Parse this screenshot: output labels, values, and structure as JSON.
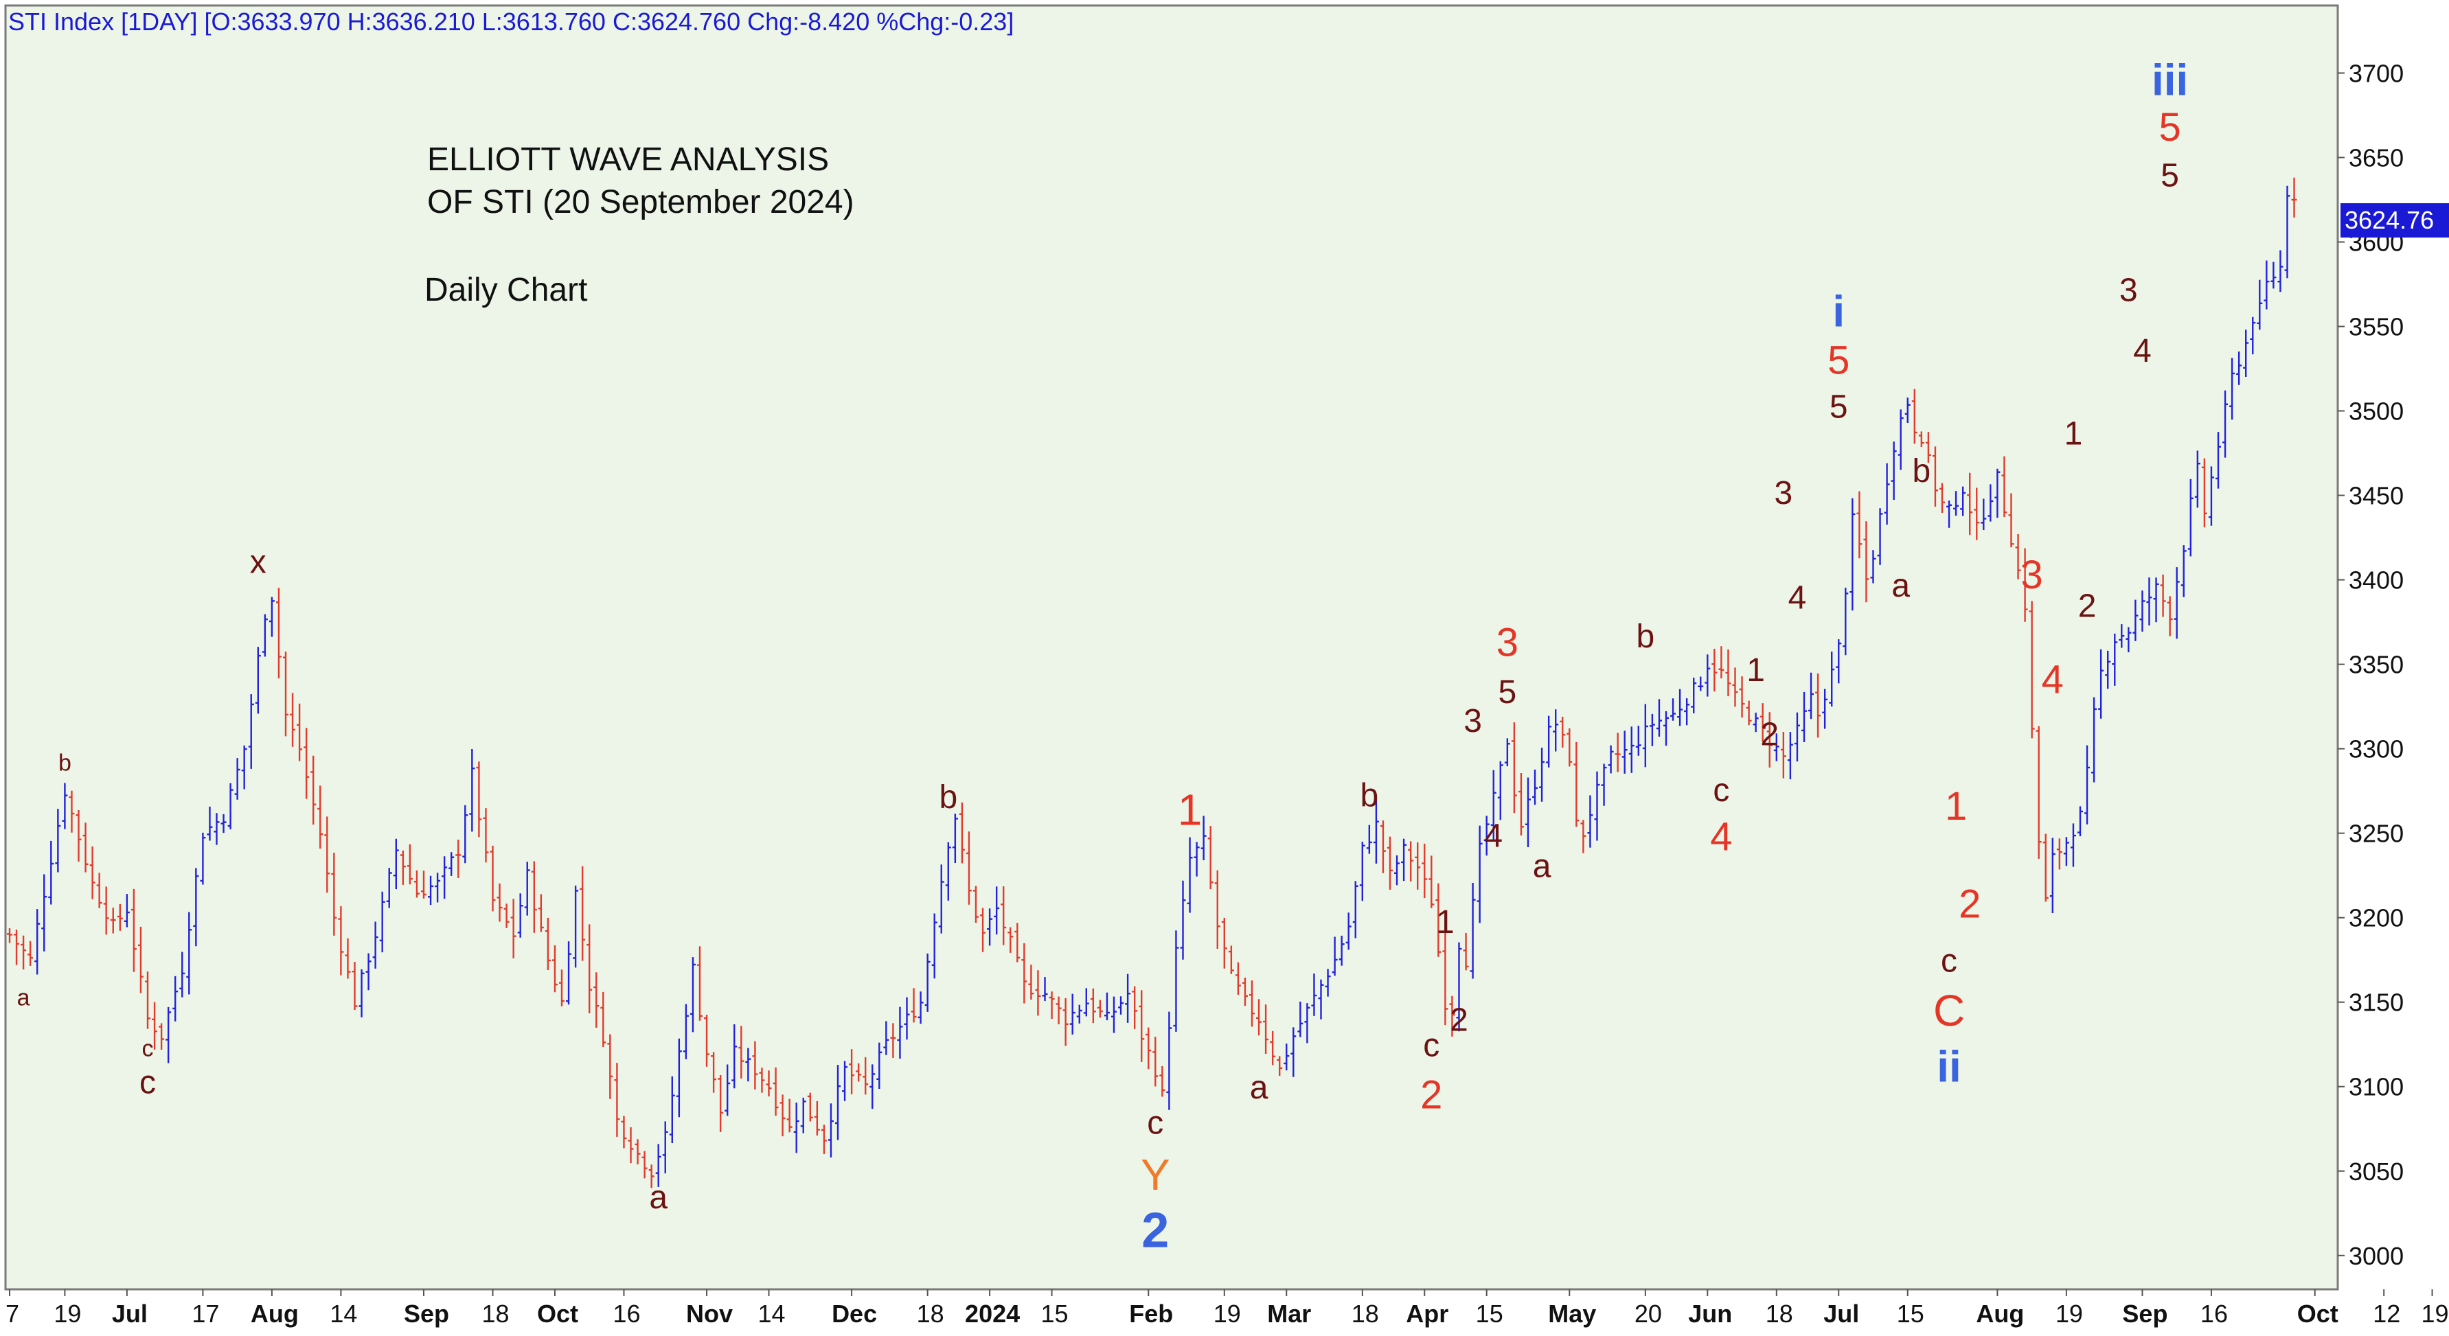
{
  "header": "STI Index [1DAY] [O:3633.970 H:3636.210 L:3613.760 C:3624.760 Chg:-8.420 %Chg:-0.23]",
  "title_lines": [
    "ELLIOTT WAVE ANALYSIS",
    "OF STI (20 September 2024)"
  ],
  "subtitle": "Daily Chart",
  "last_price_label": "3624.76",
  "colors": {
    "plot_bg": "#ecf5e8",
    "up_bar": "#2222dd",
    "down_bar": "#e23b2e",
    "wave_dark": "#6b1212",
    "wave_red": "#e53526",
    "wave_blue": "#3a63e0",
    "wave_orange": "#ef7b2a",
    "header_text": "#1a1ad6",
    "last_price_bg": "#1a1ad6"
  },
  "chart_data": {
    "type": "ohlc",
    "y_axis": {
      "min": 2980,
      "max": 3740,
      "ticks": [
        3000,
        3050,
        3100,
        3150,
        3200,
        3250,
        3300,
        3350,
        3400,
        3450,
        3500,
        3550,
        3600,
        3650,
        3700
      ],
      "position": "right"
    },
    "x_axis": {
      "labels": [
        {
          "text": "7",
          "bar": 0,
          "bold": false
        },
        {
          "text": "19",
          "bar": 8,
          "bold": false
        },
        {
          "text": "Jul",
          "bar": 17,
          "bold": true
        },
        {
          "text": "17",
          "bar": 28,
          "bold": false
        },
        {
          "text": "Aug",
          "bar": 38,
          "bold": true
        },
        {
          "text": "14",
          "bar": 48,
          "bold": false
        },
        {
          "text": "Sep",
          "bar": 60,
          "bold": true
        },
        {
          "text": "18",
          "bar": 70,
          "bold": false
        },
        {
          "text": "Oct",
          "bar": 79,
          "bold": true
        },
        {
          "text": "16",
          "bar": 89,
          "bold": false
        },
        {
          "text": "Nov",
          "bar": 101,
          "bold": true
        },
        {
          "text": "14",
          "bar": 110,
          "bold": false
        },
        {
          "text": "Dec",
          "bar": 122,
          "bold": true
        },
        {
          "text": "18",
          "bar": 133,
          "bold": false
        },
        {
          "text": "2024",
          "bar": 142,
          "bold": true
        },
        {
          "text": "15",
          "bar": 151,
          "bold": false
        },
        {
          "text": "Feb",
          "bar": 165,
          "bold": true
        },
        {
          "text": "19",
          "bar": 176,
          "bold": false
        },
        {
          "text": "Mar",
          "bar": 185,
          "bold": true
        },
        {
          "text": "18",
          "bar": 196,
          "bold": false
        },
        {
          "text": "Apr",
          "bar": 205,
          "bold": true
        },
        {
          "text": "15",
          "bar": 214,
          "bold": false
        },
        {
          "text": "May",
          "bar": 226,
          "bold": true
        },
        {
          "text": "20",
          "bar": 237,
          "bold": false
        },
        {
          "text": "Jun",
          "bar": 246,
          "bold": true
        },
        {
          "text": "18",
          "bar": 256,
          "bold": false
        },
        {
          "text": "Jul",
          "bar": 265,
          "bold": true
        },
        {
          "text": "15",
          "bar": 275,
          "bold": false
        },
        {
          "text": "Aug",
          "bar": 288,
          "bold": true
        },
        {
          "text": "19",
          "bar": 298,
          "bold": false
        },
        {
          "text": "Sep",
          "bar": 309,
          "bold": true
        },
        {
          "text": "16",
          "bar": 319,
          "bold": false
        },
        {
          "text": "Oct",
          "bar": 334,
          "bold": true
        },
        {
          "text": "12",
          "bar": 344,
          "bold": false
        },
        {
          "text": "19",
          "bar": 351,
          "bold": false
        }
      ]
    },
    "anchors": [
      [
        0,
        3190
      ],
      [
        3,
        3175
      ],
      [
        8,
        3275
      ],
      [
        12,
        3220
      ],
      [
        15,
        3195
      ],
      [
        17,
        3205
      ],
      [
        20,
        3140
      ],
      [
        22,
        3130
      ],
      [
        25,
        3170
      ],
      [
        28,
        3250
      ],
      [
        31,
        3260
      ],
      [
        34,
        3300
      ],
      [
        37,
        3380
      ],
      [
        38,
        3390
      ],
      [
        40,
        3320
      ],
      [
        42,
        3300
      ],
      [
        45,
        3250
      ],
      [
        47,
        3200
      ],
      [
        50,
        3150
      ],
      [
        53,
        3190
      ],
      [
        56,
        3240
      ],
      [
        59,
        3215
      ],
      [
        62,
        3220
      ],
      [
        65,
        3240
      ],
      [
        67,
        3285
      ],
      [
        70,
        3210
      ],
      [
        73,
        3190
      ],
      [
        75,
        3225
      ],
      [
        78,
        3175
      ],
      [
        80,
        3150
      ],
      [
        82,
        3215
      ],
      [
        84,
        3160
      ],
      [
        86,
        3130
      ],
      [
        88,
        3080
      ],
      [
        91,
        3060
      ],
      [
        93,
        3050
      ],
      [
        95,
        3070
      ],
      [
        97,
        3120
      ],
      [
        99,
        3170
      ],
      [
        101,
        3120
      ],
      [
        103,
        3085
      ],
      [
        105,
        3120
      ],
      [
        108,
        3110
      ],
      [
        110,
        3100
      ],
      [
        113,
        3075
      ],
      [
        115,
        3090
      ],
      [
        118,
        3070
      ],
      [
        121,
        3110
      ],
      [
        124,
        3100
      ],
      [
        127,
        3125
      ],
      [
        130,
        3140
      ],
      [
        132,
        3150
      ],
      [
        134,
        3200
      ],
      [
        136,
        3245
      ],
      [
        137,
        3260
      ],
      [
        139,
        3215
      ],
      [
        141,
        3190
      ],
      [
        143,
        3205
      ],
      [
        145,
        3185
      ],
      [
        147,
        3160
      ],
      [
        150,
        3155
      ],
      [
        153,
        3140
      ],
      [
        156,
        3150
      ],
      [
        159,
        3140
      ],
      [
        162,
        3155
      ],
      [
        164,
        3130
      ],
      [
        166,
        3110
      ],
      [
        167,
        3095
      ],
      [
        169,
        3180
      ],
      [
        171,
        3235
      ],
      [
        173,
        3245
      ],
      [
        175,
        3195
      ],
      [
        177,
        3165
      ],
      [
        179,
        3150
      ],
      [
        181,
        3140
      ],
      [
        183,
        3120
      ],
      [
        184,
        3110
      ],
      [
        186,
        3130
      ],
      [
        188,
        3145
      ],
      [
        190,
        3160
      ],
      [
        192,
        3175
      ],
      [
        194,
        3195
      ],
      [
        196,
        3240
      ],
      [
        198,
        3255
      ],
      [
        200,
        3225
      ],
      [
        202,
        3240
      ],
      [
        204,
        3230
      ],
      [
        206,
        3210
      ],
      [
        207,
        3180
      ],
      [
        208,
        3150
      ],
      [
        209,
        3145
      ],
      [
        210,
        3185
      ],
      [
        211,
        3175
      ],
      [
        213,
        3240
      ],
      [
        215,
        3270
      ],
      [
        217,
        3305
      ],
      [
        218,
        3275
      ],
      [
        219,
        3255
      ],
      [
        221,
        3280
      ],
      [
        223,
        3310
      ],
      [
        224,
        3315
      ],
      [
        226,
        3295
      ],
      [
        227,
        3255
      ],
      [
        228,
        3250
      ],
      [
        230,
        3275
      ],
      [
        232,
        3295
      ],
      [
        235,
        3300
      ],
      [
        238,
        3315
      ],
      [
        241,
        3320
      ],
      [
        243,
        3330
      ],
      [
        245,
        3340
      ],
      [
        246,
        3350
      ],
      [
        248,
        3345
      ],
      [
        250,
        3330
      ],
      [
        252,
        3320
      ],
      [
        254,
        3310
      ],
      [
        256,
        3300
      ],
      [
        257,
        3295
      ],
      [
        259,
        3310
      ],
      [
        261,
        3330
      ],
      [
        262,
        3320
      ],
      [
        264,
        3345
      ],
      [
        265,
        3360
      ],
      [
        266,
        3395
      ],
      [
        267,
        3435
      ],
      [
        268,
        3420
      ],
      [
        269,
        3400
      ],
      [
        270,
        3415
      ],
      [
        272,
        3460
      ],
      [
        273,
        3480
      ],
      [
        274,
        3495
      ],
      [
        275,
        3505
      ],
      [
        276,
        3490
      ],
      [
        277,
        3485
      ],
      [
        278,
        3470
      ],
      [
        279,
        3455
      ],
      [
        280,
        3445
      ],
      [
        282,
        3440
      ],
      [
        283,
        3455
      ],
      [
        285,
        3430
      ],
      [
        286,
        3440
      ],
      [
        288,
        3460
      ],
      [
        290,
        3425
      ],
      [
        292,
        3385
      ],
      [
        293,
        3310
      ],
      [
        294,
        3245
      ],
      [
        295,
        3210
      ],
      [
        296,
        3235
      ],
      [
        298,
        3245
      ],
      [
        300,
        3260
      ],
      [
        301,
        3285
      ],
      [
        302,
        3320
      ],
      [
        303,
        3345
      ],
      [
        305,
        3365
      ],
      [
        307,
        3370
      ],
      [
        309,
        3385
      ],
      [
        311,
        3395
      ],
      [
        313,
        3380
      ],
      [
        315,
        3420
      ],
      [
        316,
        3445
      ],
      [
        317,
        3465
      ],
      [
        318,
        3440
      ],
      [
        319,
        3460
      ],
      [
        320,
        3480
      ],
      [
        321,
        3500
      ],
      [
        322,
        3520
      ],
      [
        324,
        3540
      ],
      [
        325,
        3555
      ],
      [
        326,
        3560
      ],
      [
        327,
        3575
      ],
      [
        328,
        3580
      ],
      [
        329,
        3585
      ],
      [
        330,
        3630
      ],
      [
        331,
        3625
      ]
    ],
    "wave_labels": [
      {
        "text": "a",
        "bar": 2,
        "price": 3148,
        "size": 34,
        "color": "wave_dark"
      },
      {
        "text": "b",
        "bar": 8,
        "price": 3287,
        "size": 34,
        "color": "wave_dark"
      },
      {
        "text": "c",
        "bar": 20,
        "price": 3118,
        "size": 34,
        "color": "wave_dark"
      },
      {
        "text": "c",
        "bar": 20,
        "price": 3096,
        "size": 48,
        "color": "wave_dark"
      },
      {
        "text": "x",
        "bar": 36,
        "price": 3404,
        "size": 48,
        "color": "wave_dark"
      },
      {
        "text": "a",
        "bar": 94,
        "price": 3028,
        "size": 48,
        "color": "wave_dark"
      },
      {
        "text": "b",
        "bar": 136,
        "price": 3265,
        "size": 48,
        "color": "wave_dark"
      },
      {
        "text": "c",
        "bar": 166,
        "price": 3072,
        "size": 48,
        "color": "wave_dark"
      },
      {
        "text": "Y",
        "bar": 166,
        "price": 3039,
        "size": 64,
        "color": "wave_orange"
      },
      {
        "text": "2",
        "bar": 166,
        "price": 3005,
        "size": 72,
        "color": "wave_blue"
      },
      {
        "text": "1",
        "bar": 171,
        "price": 3255,
        "size": 64,
        "color": "wave_red"
      },
      {
        "text": "a",
        "bar": 181,
        "price": 3093,
        "size": 48,
        "color": "wave_dark"
      },
      {
        "text": "b",
        "bar": 197,
        "price": 3266,
        "size": 48,
        "color": "wave_dark"
      },
      {
        "text": "c",
        "bar": 206,
        "price": 3118,
        "size": 48,
        "color": "wave_dark"
      },
      {
        "text": "2",
        "bar": 206,
        "price": 3087,
        "size": 58,
        "color": "wave_red"
      },
      {
        "text": "1",
        "bar": 208,
        "price": 3191,
        "size": 48,
        "color": "wave_dark"
      },
      {
        "text": "2",
        "bar": 210,
        "price": 3133,
        "size": 48,
        "color": "wave_dark"
      },
      {
        "text": "3",
        "bar": 212,
        "price": 3310,
        "size": 48,
        "color": "wave_dark"
      },
      {
        "text": "4",
        "bar": 215,
        "price": 3242,
        "size": 48,
        "color": "wave_dark"
      },
      {
        "text": "3",
        "bar": 217,
        "price": 3355,
        "size": 58,
        "color": "wave_red"
      },
      {
        "text": "5",
        "bar": 217,
        "price": 3327,
        "size": 48,
        "color": "wave_dark"
      },
      {
        "text": "a",
        "bar": 222,
        "price": 3224,
        "size": 48,
        "color": "wave_dark"
      },
      {
        "text": "b",
        "bar": 237,
        "price": 3360,
        "size": 48,
        "color": "wave_dark"
      },
      {
        "text": "c",
        "bar": 248,
        "price": 3269,
        "size": 48,
        "color": "wave_dark"
      },
      {
        "text": "4",
        "bar": 248,
        "price": 3240,
        "size": 58,
        "color": "wave_red"
      },
      {
        "text": "1",
        "bar": 253,
        "price": 3340,
        "size": 48,
        "color": "wave_dark"
      },
      {
        "text": "2",
        "bar": 255,
        "price": 3302,
        "size": 48,
        "color": "wave_dark"
      },
      {
        "text": "3",
        "bar": 257,
        "price": 3445,
        "size": 48,
        "color": "wave_dark"
      },
      {
        "text": "4",
        "bar": 259,
        "price": 3383,
        "size": 48,
        "color": "wave_dark"
      },
      {
        "text": "i",
        "bar": 265,
        "price": 3550,
        "size": 64,
        "color": "wave_blue"
      },
      {
        "text": "5",
        "bar": 265,
        "price": 3522,
        "size": 58,
        "color": "wave_red"
      },
      {
        "text": "5",
        "bar": 265,
        "price": 3496,
        "size": 48,
        "color": "wave_dark"
      },
      {
        "text": "a",
        "bar": 274,
        "price": 3390,
        "size": 48,
        "color": "wave_dark"
      },
      {
        "text": "b",
        "bar": 277,
        "price": 3458,
        "size": 48,
        "color": "wave_dark"
      },
      {
        "text": "1",
        "bar": 282,
        "price": 3258,
        "size": 58,
        "color": "wave_red"
      },
      {
        "text": "2",
        "bar": 284,
        "price": 3200,
        "size": 58,
        "color": "wave_red"
      },
      {
        "text": "c",
        "bar": 281,
        "price": 3168,
        "size": 48,
        "color": "wave_dark"
      },
      {
        "text": "C",
        "bar": 281,
        "price": 3136,
        "size": 64,
        "color": "wave_red"
      },
      {
        "text": "ii",
        "bar": 281,
        "price": 3103,
        "size": 64,
        "color": "wave_blue"
      },
      {
        "text": "3",
        "bar": 293,
        "price": 3395,
        "size": 58,
        "color": "wave_red"
      },
      {
        "text": "4",
        "bar": 296,
        "price": 3333,
        "size": 58,
        "color": "wave_red"
      },
      {
        "text": "1",
        "bar": 299,
        "price": 3480,
        "size": 48,
        "color": "wave_dark"
      },
      {
        "text": "2",
        "bar": 301,
        "price": 3378,
        "size": 48,
        "color": "wave_dark"
      },
      {
        "text": "3",
        "bar": 307,
        "price": 3565,
        "size": 48,
        "color": "wave_dark"
      },
      {
        "text": "4",
        "bar": 309,
        "price": 3529,
        "size": 48,
        "color": "wave_dark"
      },
      {
        "text": "iii",
        "bar": 313,
        "price": 3687,
        "size": 64,
        "color": "wave_blue"
      },
      {
        "text": "5",
        "bar": 313,
        "price": 3660,
        "size": 58,
        "color": "wave_red"
      },
      {
        "text": "5",
        "bar": 313,
        "price": 3633,
        "size": 48,
        "color": "wave_dark"
      }
    ]
  }
}
